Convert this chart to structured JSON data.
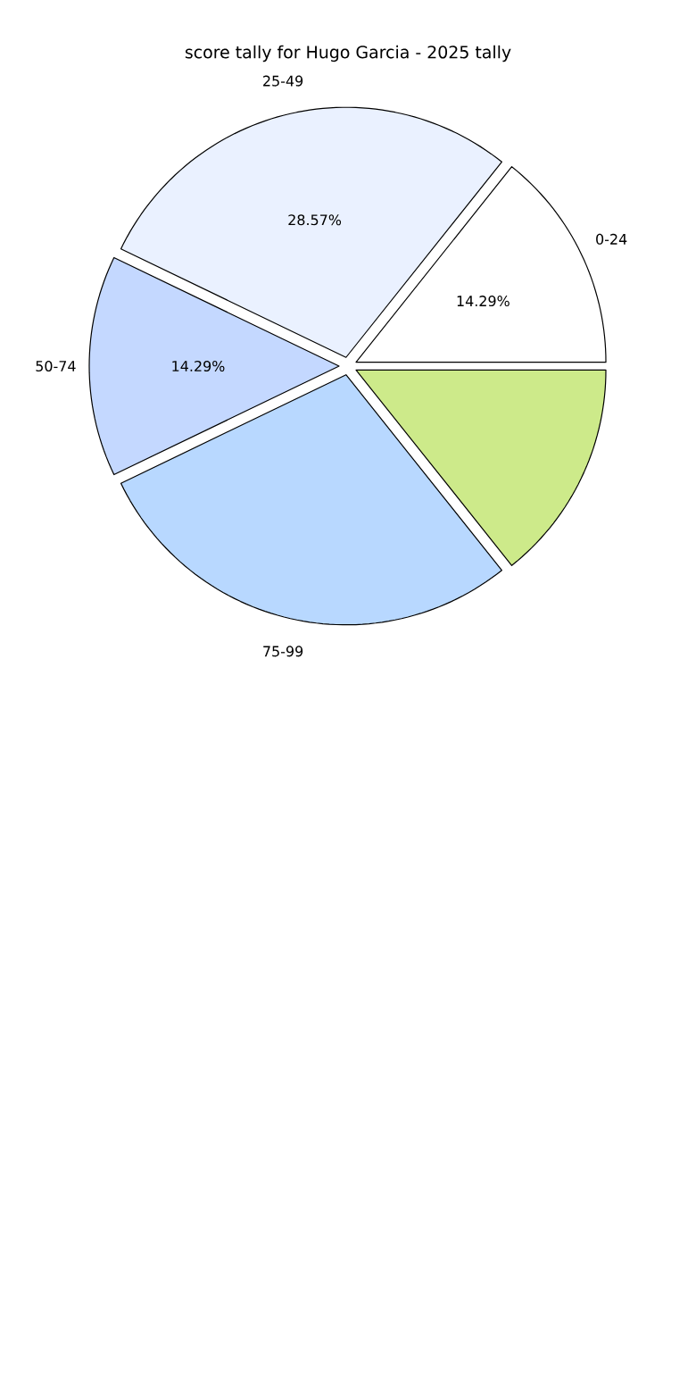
{
  "chart_data": {
    "type": "pie",
    "title": "score tally for Hugo Garcia - 2025 tally",
    "categories": [
      "0-24",
      "25-49",
      "50-74",
      "75-99",
      null
    ],
    "values": [
      14.29,
      28.57,
      14.29,
      28.57,
      14.29
    ],
    "colors": [
      "#ffffff",
      "#eaf1ff",
      "#c4d8ff",
      "#b8d8ff",
      "#cdea8a"
    ],
    "value_labels": [
      "14.29%",
      "28.57%",
      "14.29%",
      null,
      null
    ]
  }
}
